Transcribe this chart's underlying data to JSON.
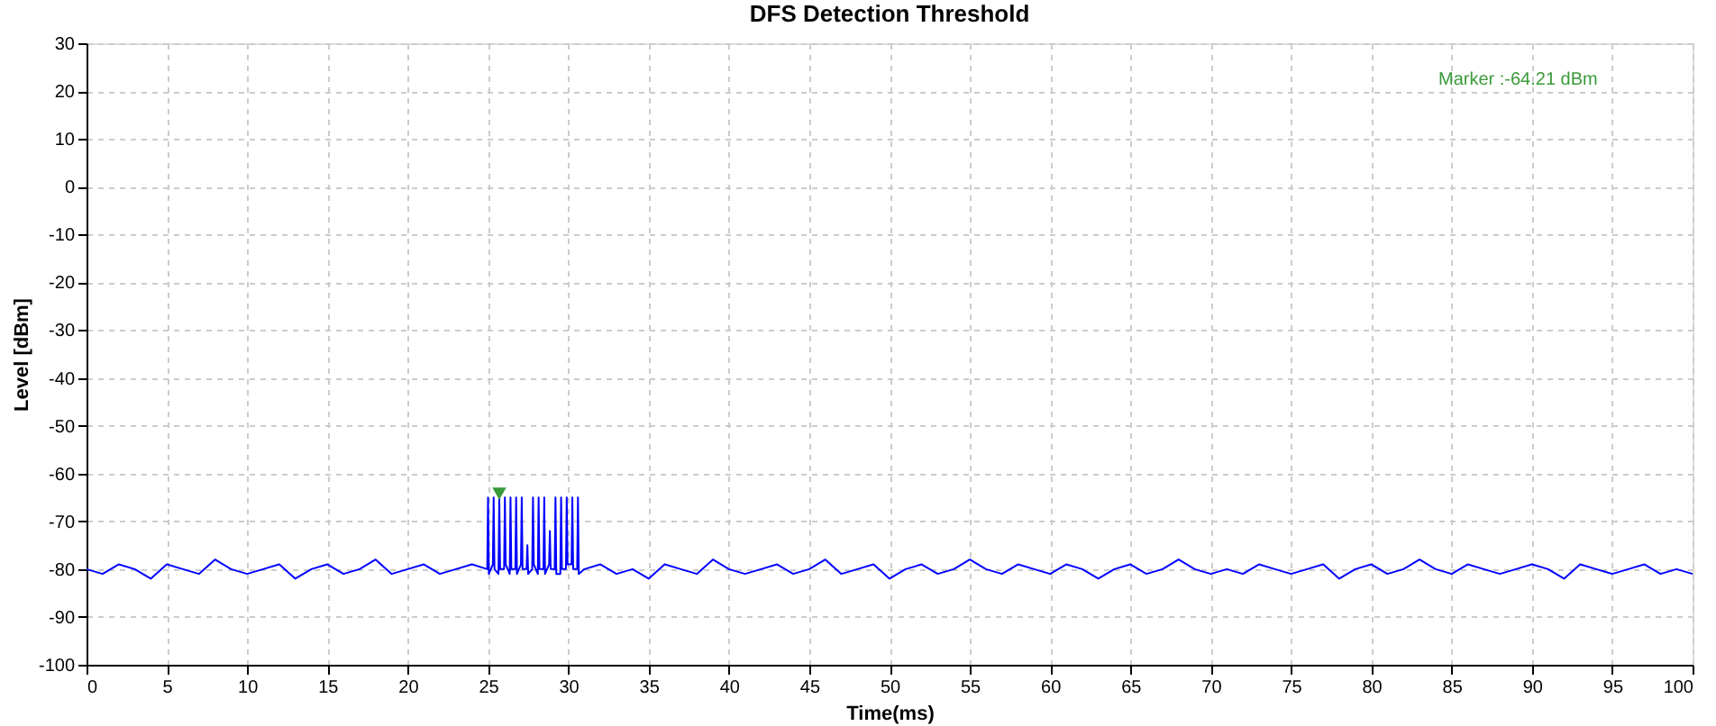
{
  "chart_data": {
    "type": "line",
    "title": "DFS Detection Threshold",
    "xlabel": "Time(ms)",
    "ylabel": "Level [dBm]",
    "xlim": [
      0,
      100
    ],
    "ylim": [
      -100,
      30
    ],
    "xticks": [
      0,
      5,
      10,
      15,
      20,
      25,
      30,
      35,
      40,
      45,
      50,
      55,
      60,
      65,
      70,
      75,
      80,
      85,
      90,
      95,
      100
    ],
    "yticks": [
      -100,
      -90,
      -80,
      -70,
      -60,
      -50,
      -40,
      -30,
      -20,
      -10,
      0,
      10,
      20,
      30
    ],
    "grid": true,
    "line_style": "solid",
    "annotations": [
      "Marker :-64.21 dBm"
    ],
    "series": [
      {
        "color": "#0000ff",
        "x": [
          0,
          1,
          2,
          3,
          4,
          5,
          6,
          7,
          8,
          9,
          10,
          11,
          12,
          13,
          14,
          15,
          16,
          17,
          18,
          19,
          20,
          21,
          22,
          23,
          24,
          24.95,
          25,
          25.05,
          25.3,
          25.35,
          25.4,
          25.65,
          25.7,
          25.75,
          26,
          26.05,
          26.1,
          26.35,
          26.4,
          26.45,
          26.7,
          26.75,
          26.8,
          27.05,
          27.1,
          27.15,
          27.4,
          27.45,
          27.5,
          27.75,
          27.8,
          27.85,
          28.1,
          28.15,
          28.2,
          28.45,
          28.5,
          28.55,
          28.8,
          28.85,
          28.9,
          29.15,
          29.2,
          29.25,
          29.5,
          29.55,
          29.6,
          29.85,
          29.9,
          29.95,
          30.2,
          30.25,
          30.3,
          30.55,
          30.6,
          30.65,
          31,
          32,
          33,
          34,
          35,
          36,
          37,
          38,
          39,
          40,
          41,
          42,
          43,
          44,
          45,
          46,
          47,
          48,
          49,
          50,
          51,
          52,
          53,
          54,
          55,
          56,
          57,
          58,
          59,
          60,
          61,
          62,
          63,
          64,
          65,
          66,
          67,
          68,
          69,
          70,
          71,
          72,
          73,
          74,
          75,
          76,
          77,
          78,
          79,
          80,
          81,
          82,
          83,
          84,
          85,
          86,
          87,
          88,
          89,
          90,
          91,
          92,
          93,
          94,
          95,
          96,
          97,
          98,
          99,
          100
        ],
        "values": [
          -80,
          -81,
          -79,
          -80,
          -82,
          -79,
          -80,
          -81,
          -78,
          -80,
          -81,
          -80,
          -79,
          -82,
          -80,
          -79,
          -81,
          -80,
          -78,
          -81,
          -80,
          -79,
          -81,
          -80,
          -79,
          -80,
          -65,
          -81,
          -79,
          -65,
          -80,
          -81,
          -65,
          -80,
          -80,
          -65,
          -79,
          -81,
          -65,
          -80,
          -80,
          -65,
          -81,
          -79,
          -65,
          -80,
          -80,
          -75,
          -81,
          -80,
          -65,
          -79,
          -81,
          -65,
          -80,
          -80,
          -65,
          -81,
          -79,
          -72,
          -80,
          -80,
          -65,
          -81,
          -81,
          -65,
          -80,
          -80,
          -65,
          -79,
          -79,
          -65,
          -80,
          -80,
          -65,
          -81,
          -80,
          -79,
          -81,
          -80,
          -82,
          -79,
          -80,
          -81,
          -78,
          -80,
          -81,
          -80,
          -79,
          -81,
          -80,
          -78,
          -81,
          -80,
          -79,
          -82,
          -80,
          -79,
          -81,
          -80,
          -78,
          -80,
          -81,
          -79,
          -80,
          -81,
          -79,
          -80,
          -82,
          -80,
          -79,
          -81,
          -80,
          -78,
          -80,
          -81,
          -80,
          -81,
          -79,
          -80,
          -81,
          -80,
          -79,
          -82,
          -80,
          -79,
          -81,
          -80,
          -78,
          -80,
          -81,
          -79,
          -80,
          -81,
          -80,
          -79,
          -80,
          -82,
          -79,
          -80,
          -81,
          -80,
          -79,
          -81,
          -80,
          -81
        ]
      },
      {
        "type": "scatter",
        "marker": "triangle",
        "color": "#3a9a3a",
        "x": [
          25.7
        ],
        "values": [
          -64.21
        ]
      }
    ]
  }
}
